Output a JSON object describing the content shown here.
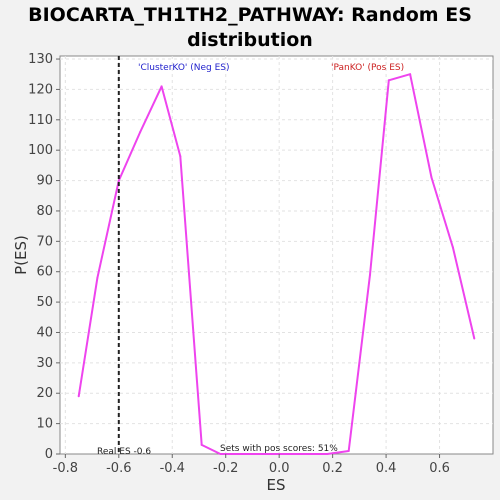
{
  "chart_data": {
    "type": "line",
    "title_line1": "BIOCARTA_TH1TH2_PATHWAY: Random ES",
    "title_line2": "distribution",
    "xlabel": "ES",
    "ylabel": "P(ES)",
    "xlim": [
      -0.82,
      0.8
    ],
    "ylim": [
      0,
      131
    ],
    "x_ticks": [
      -0.8,
      -0.6,
      -0.4,
      -0.2,
      0.0,
      0.2,
      0.4,
      0.6
    ],
    "x_tick_labels": [
      "-0.8",
      "-0.6",
      "-0.4",
      "-0.2",
      "0.0",
      "0.2",
      "0.4",
      "0.6"
    ],
    "y_ticks": [
      0,
      10,
      20,
      30,
      40,
      50,
      60,
      70,
      80,
      90,
      100,
      110,
      120,
      130
    ],
    "y_tick_labels": [
      "0",
      "10",
      "20",
      "30",
      "40",
      "50",
      "60",
      "70",
      "80",
      "90",
      "100",
      "110",
      "120",
      "130"
    ],
    "grid": true,
    "series": [
      {
        "color": "#ee44ee",
        "x": [
          -0.75,
          -0.68,
          -0.6,
          -0.52,
          -0.44,
          -0.37,
          -0.29,
          -0.22,
          -0.14,
          -0.06,
          0.02,
          0.1,
          0.18,
          0.26,
          0.34,
          0.41,
          0.49,
          0.57,
          0.65,
          0.73
        ],
        "y": [
          19,
          58,
          90,
          106,
          121,
          98,
          3,
          0,
          0,
          0,
          0,
          0,
          0,
          1,
          59,
          123,
          125,
          91,
          68,
          38
        ]
      }
    ],
    "marker": {
      "x": -0.6,
      "color": "#222222"
    },
    "annotations": {
      "neg": {
        "text": "'ClusterKO' (Neg ES)",
        "color": "#2222cc"
      },
      "pos": {
        "text": "'PanKO' (Pos ES)",
        "color": "#cc2222"
      },
      "real_es": {
        "text": "Real ES -0.6"
      },
      "sets_pos": {
        "text": "Sets with pos scores: 51%"
      }
    },
    "plot_bg": "#ffffff"
  }
}
